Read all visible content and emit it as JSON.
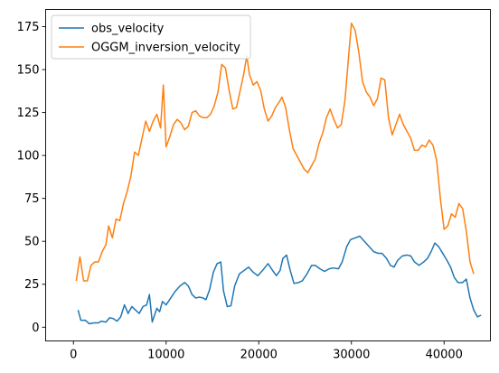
{
  "chart_data": {
    "type": "line",
    "title": "",
    "xlabel": "",
    "ylabel": "",
    "xlim": [
      -3000,
      45000
    ],
    "ylim": [
      -8,
      185
    ],
    "xticks": [
      0,
      10000,
      20000,
      30000,
      40000
    ],
    "yticks": [
      0,
      25,
      50,
      75,
      100,
      125,
      150,
      175
    ],
    "grid": false,
    "legend_position": "top-left",
    "series": [
      {
        "name": "obs_velocity",
        "color": "#1f77b4",
        "points": [
          [
            500,
            10
          ],
          [
            800,
            4
          ],
          [
            1300,
            4
          ],
          [
            1700,
            2
          ],
          [
            2200,
            2.5
          ],
          [
            2700,
            2.5
          ],
          [
            3000,
            3.5
          ],
          [
            3500,
            3
          ],
          [
            3900,
            5.5
          ],
          [
            4300,
            5
          ],
          [
            4700,
            3.5
          ],
          [
            5100,
            6
          ],
          [
            5500,
            13
          ],
          [
            5900,
            8
          ],
          [
            6300,
            12
          ],
          [
            6700,
            10
          ],
          [
            7100,
            8
          ],
          [
            7500,
            12
          ],
          [
            7900,
            13
          ],
          [
            8200,
            19
          ],
          [
            8500,
            3
          ],
          [
            9000,
            11
          ],
          [
            9300,
            9
          ],
          [
            9600,
            15
          ],
          [
            10000,
            13
          ],
          [
            10500,
            17
          ],
          [
            11000,
            21
          ],
          [
            11500,
            24
          ],
          [
            12000,
            26
          ],
          [
            12400,
            24
          ],
          [
            12800,
            19
          ],
          [
            13200,
            17
          ],
          [
            13600,
            17.5
          ],
          [
            14000,
            17
          ],
          [
            14300,
            16
          ],
          [
            14700,
            22
          ],
          [
            15100,
            32
          ],
          [
            15500,
            37
          ],
          [
            15900,
            38
          ],
          [
            16200,
            21
          ],
          [
            16600,
            12
          ],
          [
            17000,
            12.5
          ],
          [
            17400,
            24
          ],
          [
            17900,
            31
          ],
          [
            18400,
            33
          ],
          [
            18900,
            35
          ],
          [
            19400,
            32
          ],
          [
            19900,
            30
          ],
          [
            20400,
            33
          ],
          [
            21000,
            37
          ],
          [
            21500,
            33
          ],
          [
            21900,
            30
          ],
          [
            22300,
            33
          ],
          [
            22600,
            40
          ],
          [
            23000,
            42
          ],
          [
            23400,
            33
          ],
          [
            23800,
            25.5
          ],
          [
            24300,
            26
          ],
          [
            24700,
            27
          ],
          [
            25200,
            31
          ],
          [
            25700,
            36
          ],
          [
            26100,
            36
          ],
          [
            26600,
            34
          ],
          [
            27100,
            32.5
          ],
          [
            27600,
            34
          ],
          [
            28000,
            34.5
          ],
          [
            28600,
            34
          ],
          [
            29000,
            38
          ],
          [
            29500,
            47
          ],
          [
            29900,
            51
          ],
          [
            30400,
            52
          ],
          [
            30900,
            53
          ],
          [
            31400,
            50
          ],
          [
            31900,
            47
          ],
          [
            32400,
            44
          ],
          [
            32900,
            43
          ],
          [
            33300,
            43
          ],
          [
            33800,
            40
          ],
          [
            34200,
            36
          ],
          [
            34600,
            35
          ],
          [
            35000,
            39
          ],
          [
            35500,
            41.5
          ],
          [
            36000,
            42
          ],
          [
            36400,
            41.5
          ],
          [
            36800,
            38
          ],
          [
            37300,
            36
          ],
          [
            37800,
            38
          ],
          [
            38200,
            40
          ],
          [
            38600,
            44
          ],
          [
            39000,
            49
          ],
          [
            39400,
            47
          ],
          [
            39800,
            43.5
          ],
          [
            40300,
            39
          ],
          [
            40700,
            35
          ],
          [
            41100,
            29
          ],
          [
            41500,
            26
          ],
          [
            42000,
            26
          ],
          [
            42400,
            28
          ],
          [
            42800,
            17
          ],
          [
            43200,
            10
          ],
          [
            43600,
            6
          ],
          [
            44000,
            7
          ]
        ]
      },
      {
        "name": "OGGM_inversion_velocity",
        "color": "#ff7f0e",
        "points": [
          [
            300,
            27
          ],
          [
            700,
            41
          ],
          [
            1100,
            27
          ],
          [
            1500,
            27
          ],
          [
            1900,
            36
          ],
          [
            2300,
            38
          ],
          [
            2700,
            38
          ],
          [
            3100,
            44
          ],
          [
            3500,
            48
          ],
          [
            3800,
            59
          ],
          [
            4200,
            52
          ],
          [
            4600,
            63
          ],
          [
            5000,
            62
          ],
          [
            5400,
            72
          ],
          [
            5800,
            79
          ],
          [
            6200,
            88
          ],
          [
            6600,
            102
          ],
          [
            7000,
            100
          ],
          [
            7400,
            110
          ],
          [
            7800,
            120
          ],
          [
            8200,
            114
          ],
          [
            8600,
            120
          ],
          [
            9000,
            124
          ],
          [
            9400,
            116
          ],
          [
            9700,
            141
          ],
          [
            10000,
            105
          ],
          [
            10400,
            111
          ],
          [
            10800,
            118
          ],
          [
            11200,
            121
          ],
          [
            11600,
            119
          ],
          [
            12000,
            115
          ],
          [
            12400,
            117
          ],
          [
            12800,
            125
          ],
          [
            13200,
            126
          ],
          [
            13600,
            123
          ],
          [
            14000,
            122
          ],
          [
            14400,
            122
          ],
          [
            14800,
            124
          ],
          [
            15200,
            129
          ],
          [
            15600,
            137
          ],
          [
            16000,
            153
          ],
          [
            16400,
            151
          ],
          [
            16800,
            138
          ],
          [
            17200,
            127
          ],
          [
            17600,
            128
          ],
          [
            18000,
            138
          ],
          [
            18400,
            148
          ],
          [
            18700,
            158
          ],
          [
            19000,
            147
          ],
          [
            19400,
            141
          ],
          [
            19800,
            143
          ],
          [
            20200,
            138
          ],
          [
            20600,
            127
          ],
          [
            21000,
            120
          ],
          [
            21400,
            123
          ],
          [
            21800,
            128
          ],
          [
            22200,
            131
          ],
          [
            22500,
            134
          ],
          [
            22900,
            128
          ],
          [
            23300,
            115
          ],
          [
            23700,
            104
          ],
          [
            24100,
            100
          ],
          [
            24500,
            96
          ],
          [
            24900,
            92
          ],
          [
            25300,
            90
          ],
          [
            25700,
            94
          ],
          [
            26100,
            98
          ],
          [
            26500,
            107
          ],
          [
            26900,
            113
          ],
          [
            27300,
            122
          ],
          [
            27700,
            127
          ],
          [
            28100,
            121
          ],
          [
            28500,
            116
          ],
          [
            28900,
            118
          ],
          [
            29300,
            132
          ],
          [
            29700,
            158
          ],
          [
            30000,
            177
          ],
          [
            30400,
            173
          ],
          [
            30800,
            160
          ],
          [
            31200,
            143
          ],
          [
            31600,
            137
          ],
          [
            32000,
            134
          ],
          [
            32400,
            129
          ],
          [
            32800,
            133
          ],
          [
            33200,
            145
          ],
          [
            33600,
            144
          ],
          [
            34000,
            122
          ],
          [
            34400,
            112
          ],
          [
            34800,
            118
          ],
          [
            35200,
            124
          ],
          [
            35600,
            118
          ],
          [
            36000,
            114
          ],
          [
            36400,
            110
          ],
          [
            36800,
            103
          ],
          [
            37200,
            103
          ],
          [
            37600,
            106
          ],
          [
            38000,
            105
          ],
          [
            38400,
            109
          ],
          [
            38800,
            106
          ],
          [
            39200,
            97
          ],
          [
            39600,
            75
          ],
          [
            40000,
            57
          ],
          [
            40400,
            59
          ],
          [
            40800,
            66
          ],
          [
            41200,
            64
          ],
          [
            41600,
            72
          ],
          [
            42000,
            69
          ],
          [
            42400,
            56
          ],
          [
            42800,
            38
          ],
          [
            43200,
            31
          ]
        ]
      }
    ]
  }
}
